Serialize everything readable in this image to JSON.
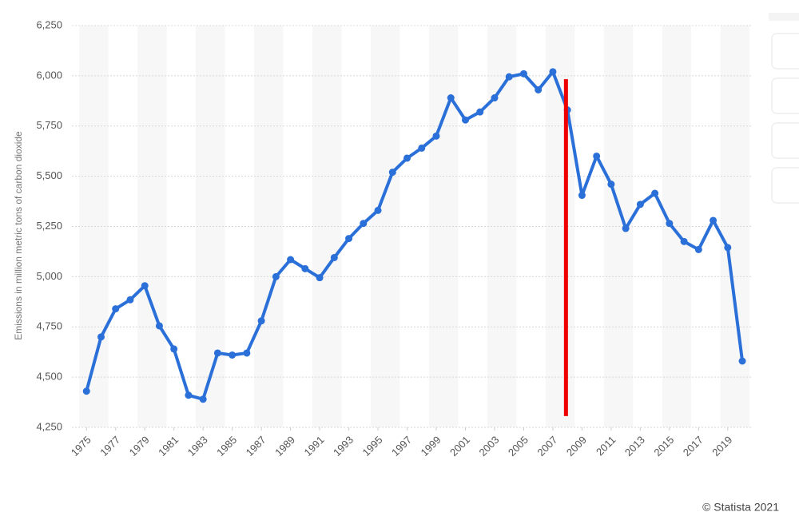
{
  "chart_data": {
    "type": "line",
    "y_label": "Emissions in million metric tons of carbon dioxide",
    "credit": "© Statista 2021",
    "x": [
      1975,
      1976,
      1977,
      1978,
      1979,
      1980,
      1981,
      1982,
      1983,
      1984,
      1985,
      1986,
      1987,
      1988,
      1989,
      1990,
      1991,
      1992,
      1993,
      1994,
      1995,
      1996,
      1997,
      1998,
      1999,
      2000,
      2001,
      2002,
      2003,
      2004,
      2005,
      2006,
      2007,
      2008,
      2009,
      2010,
      2011,
      2012,
      2013,
      2014,
      2015,
      2016,
      2017,
      2018,
      2019,
      2020
    ],
    "series": [
      {
        "color": "#2a70d8",
        "values": [
          4430,
          4700,
          4840,
          4885,
          4955,
          4755,
          4640,
          4410,
          4390,
          4620,
          4610,
          4620,
          4780,
          5000,
          5085,
          5040,
          4995,
          5095,
          5190,
          5265,
          5330,
          5520,
          5590,
          5640,
          5700,
          5890,
          5780,
          5820,
          5890,
          5995,
          6010,
          5930,
          6020,
          5830,
          5405,
          5600,
          5460,
          5240,
          5360,
          5415,
          5265,
          5175,
          5135,
          5280,
          5145,
          4580
        ]
      }
    ],
    "xlim": [
      1974,
      2020.6
    ],
    "xticks": [
      1975,
      1977,
      1979,
      1981,
      1983,
      1985,
      1987,
      1989,
      1991,
      1993,
      1995,
      1997,
      1999,
      2001,
      2003,
      2005,
      2007,
      2009,
      2011,
      2013,
      2015,
      2017,
      2019
    ],
    "ylim": [
      4250,
      6250
    ],
    "yticks": [
      {
        "value": 4250,
        "label": "4,250"
      },
      {
        "value": 4500,
        "label": "4,500"
      },
      {
        "value": 4750,
        "label": "4,750"
      },
      {
        "value": 5000,
        "label": "5,000"
      },
      {
        "value": 5250,
        "label": "5,250"
      },
      {
        "value": 5500,
        "label": "5,500"
      },
      {
        "value": 5750,
        "label": "5,750"
      },
      {
        "value": 6000,
        "label": "6,000"
      },
      {
        "value": 6250,
        "label": "6,250"
      }
    ],
    "grid": true,
    "vline": {
      "x": 2007.9,
      "y": [
        5983,
        4306
      ],
      "color": "#ee0000"
    }
  }
}
